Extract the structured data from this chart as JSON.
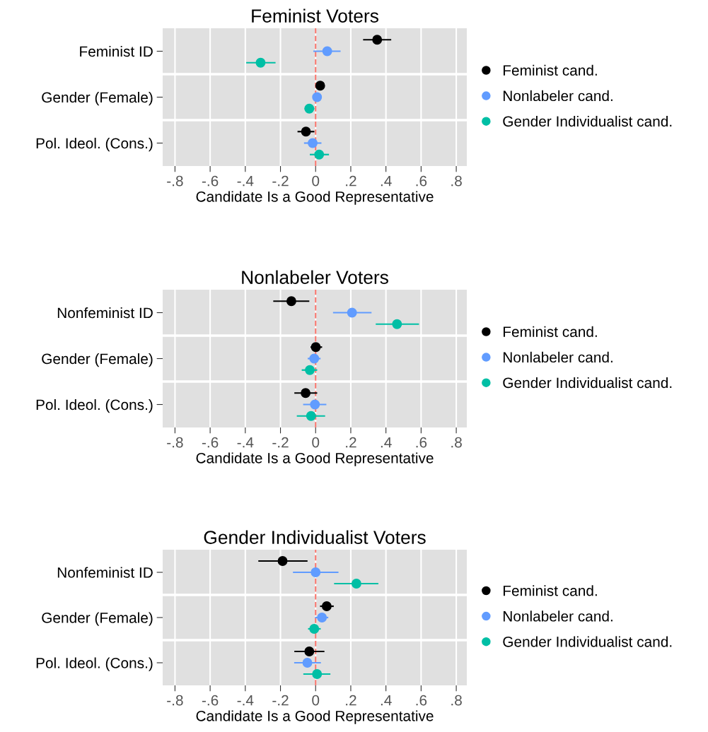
{
  "chart_data": [
    {
      "type": "scatter",
      "orientation": "horizontal",
      "title": "Feminist Voters",
      "xlabel": "Candidate Is a Good Representative",
      "categories": [
        "Feminist ID",
        "Gender (Female)",
        "Pol. Ideol. (Cons.)"
      ],
      "xlim": [
        -0.87,
        0.86
      ],
      "xticks": [
        {
          "value": -0.8,
          "label": "-.8"
        },
        {
          "value": -0.6,
          "label": "-.6"
        },
        {
          "value": -0.4,
          "label": "-.4"
        },
        {
          "value": -0.2,
          "label": "-.2"
        },
        0,
        {
          "value": 0.2,
          "label": ".2"
        },
        {
          "value": 0.4,
          "label": ".4"
        },
        {
          "value": 0.6,
          "label": ".6"
        },
        {
          "value": 0.8,
          "label": ".8"
        }
      ],
      "series": [
        {
          "name": "Feminist cand.",
          "color": "#000000",
          "values": [
            0.35,
            0.026,
            -0.055
          ],
          "errors": [
            [
              0.27,
              0.43
            ],
            [
              0.01,
              0.046
            ],
            [
              -0.103,
              -0.007
            ]
          ]
        },
        {
          "name": "Nonlabeler cand.",
          "color": "#619cff",
          "values": [
            0.066,
            0.008,
            -0.017
          ],
          "errors": [
            [
              -0.013,
              0.142
            ],
            [
              -0.017,
              0.032
            ],
            [
              -0.066,
              0.033
            ]
          ]
        },
        {
          "name": "Gender Individualist cand.",
          "color": "#00bfa5",
          "values": [
            -0.313,
            -0.036,
            0.02
          ],
          "errors": [
            [
              -0.395,
              -0.228
            ],
            [
              -0.063,
              -0.007
            ],
            [
              -0.033,
              0.076
            ]
          ]
        }
      ],
      "ref_lines": [
        {
          "axis": "x",
          "value": 0,
          "color": "#f8766d",
          "line_style": "dashed"
        }
      ],
      "grid": true,
      "legend": "right",
      "marker": "circle"
    },
    {
      "type": "scatter",
      "orientation": "horizontal",
      "title": "Nonlabeler Voters",
      "xlabel": "Candidate Is a Good Representative",
      "categories": [
        "Nonfeminist ID",
        "Gender (Female)",
        "Pol. Ideol. (Cons.)"
      ],
      "xlim": [
        -0.87,
        0.86
      ],
      "xticks": [
        {
          "value": -0.8,
          "label": "-.8"
        },
        {
          "value": -0.6,
          "label": "-.6"
        },
        {
          "value": -0.4,
          "label": "-.4"
        },
        {
          "value": -0.2,
          "label": "-.2"
        },
        0,
        {
          "value": 0.2,
          "label": ".2"
        },
        {
          "value": 0.4,
          "label": ".4"
        },
        {
          "value": 0.6,
          "label": ".6"
        },
        {
          "value": 0.8,
          "label": ".8"
        }
      ],
      "series": [
        {
          "name": "Feminist cand.",
          "color": "#000000",
          "values": [
            -0.138,
            0.001,
            -0.057
          ],
          "errors": [
            [
              -0.241,
              -0.036
            ],
            [
              -0.029,
              0.037
            ],
            [
              -0.121,
              0.009
            ]
          ]
        },
        {
          "name": "Nonlabeler cand.",
          "color": "#619cff",
          "values": [
            0.207,
            -0.008,
            -0.004
          ],
          "errors": [
            [
              0.099,
              0.318
            ],
            [
              -0.045,
              0.028
            ],
            [
              -0.071,
              0.061
            ]
          ]
        },
        {
          "name": "Gender Individualist cand.",
          "color": "#00bfa5",
          "values": [
            0.463,
            -0.033,
            -0.026
          ],
          "errors": [
            [
              0.342,
              0.588
            ],
            [
              -0.079,
              0.009
            ],
            [
              -0.107,
              0.054
            ]
          ]
        }
      ],
      "ref_lines": [
        {
          "axis": "x",
          "value": 0,
          "color": "#f8766d",
          "line_style": "dashed"
        }
      ],
      "grid": true,
      "legend": "right",
      "marker": "circle"
    },
    {
      "type": "scatter",
      "orientation": "horizontal",
      "title": "Gender Individualist Voters",
      "xlabel": "Candidate Is a Good Representative",
      "categories": [
        "Nonfeminist ID",
        "Gender (Female)",
        "Pol. Ideol. (Cons.)"
      ],
      "xlim": [
        -0.87,
        0.86
      ],
      "xticks": [
        {
          "value": -0.8,
          "label": "-.8"
        },
        {
          "value": -0.6,
          "label": "-.6"
        },
        {
          "value": -0.4,
          "label": "-.4"
        },
        {
          "value": -0.2,
          "label": "-.2"
        },
        0,
        {
          "value": 0.2,
          "label": ".2"
        },
        {
          "value": 0.4,
          "label": ".4"
        },
        {
          "value": 0.6,
          "label": ".6"
        },
        {
          "value": 0.8,
          "label": ".8"
        }
      ],
      "series": [
        {
          "name": "Feminist cand.",
          "color": "#000000",
          "values": [
            -0.188,
            0.063,
            -0.036
          ],
          "errors": [
            [
              -0.326,
              -0.046
            ],
            [
              0.025,
              0.103
            ],
            [
              -0.121,
              0.05
            ]
          ]
        },
        {
          "name": "Nonlabeler cand.",
          "color": "#619cff",
          "values": [
            0.0,
            0.036,
            -0.047
          ],
          "errors": [
            [
              -0.129,
              0.13
            ],
            [
              -0.003,
              0.072
            ],
            [
              -0.122,
              0.03
            ]
          ]
        },
        {
          "name": "Gender Individualist cand.",
          "color": "#00bfa5",
          "values": [
            0.232,
            -0.008,
            0.008
          ],
          "errors": [
            [
              0.105,
              0.357
            ],
            [
              -0.043,
              0.029
            ],
            [
              -0.07,
              0.084
            ]
          ]
        }
      ],
      "ref_lines": [
        {
          "axis": "x",
          "value": 0,
          "color": "#f8766d",
          "line_style": "dashed"
        }
      ],
      "grid": true,
      "legend": "right",
      "marker": "circle"
    }
  ]
}
